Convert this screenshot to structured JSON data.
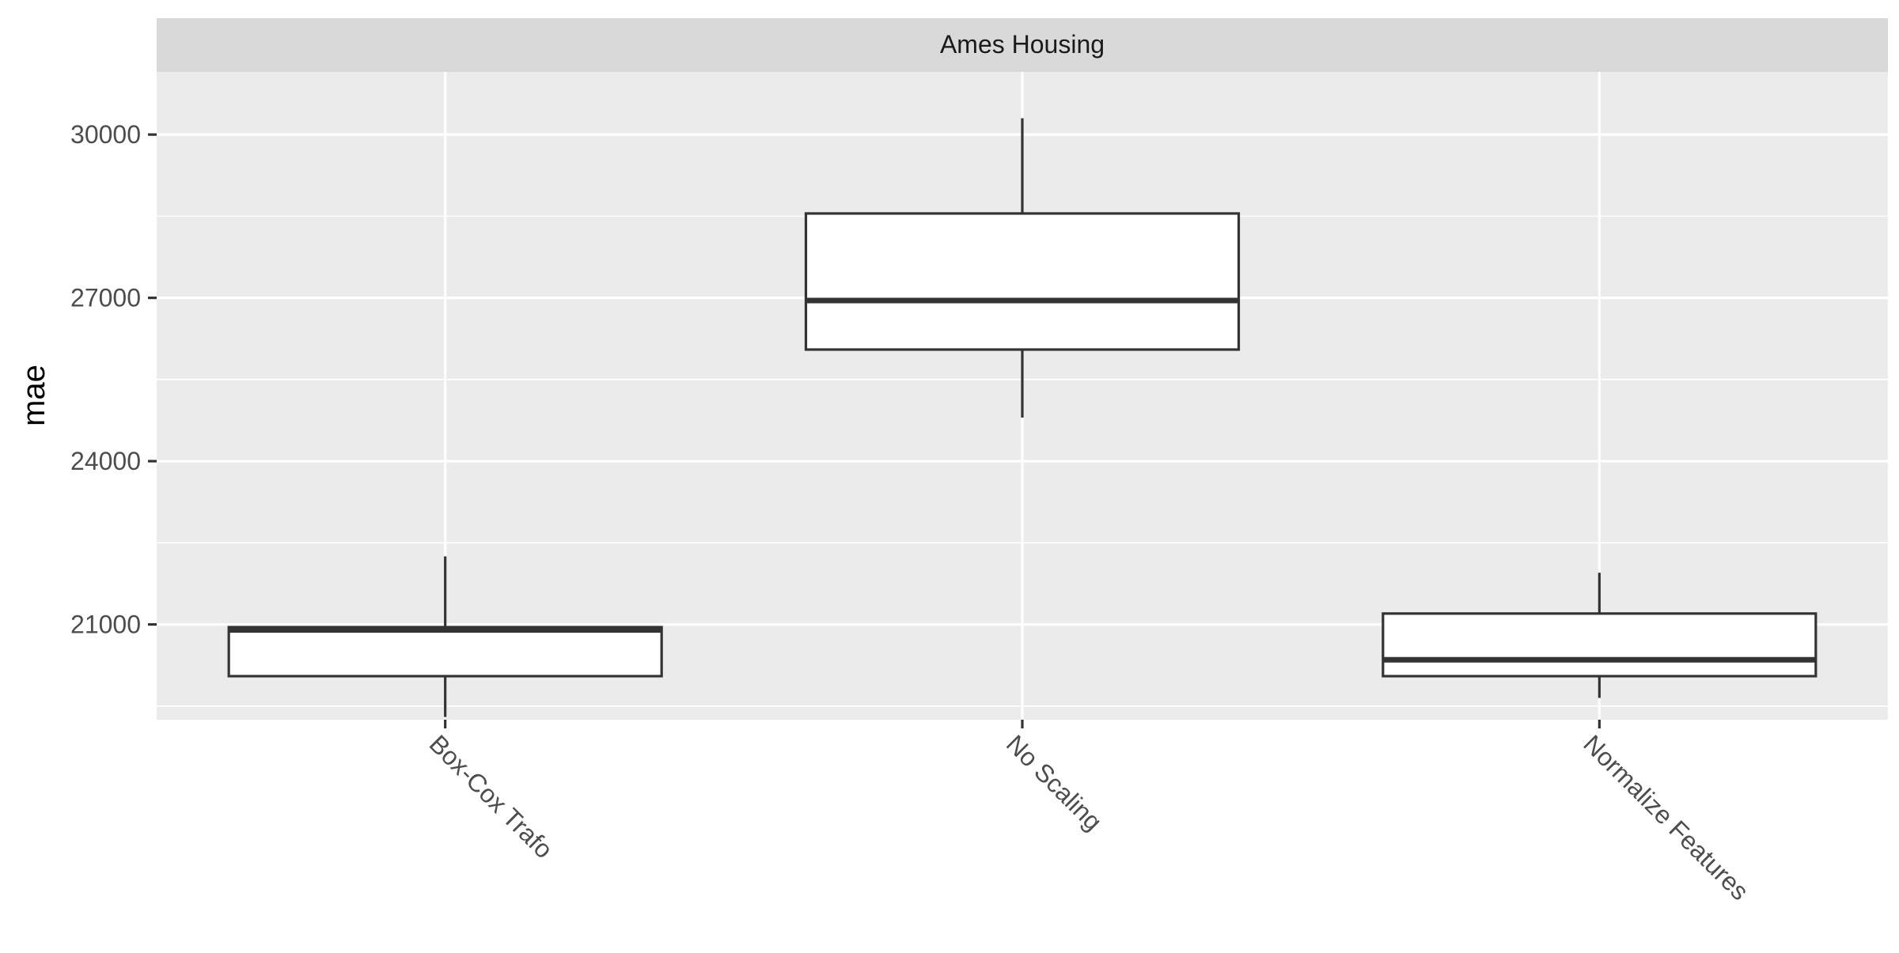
{
  "chart_data": {
    "type": "boxplot",
    "facet_title": "Ames Housing",
    "title": "",
    "xlabel": "",
    "ylabel": "mae",
    "ylim": [
      19250,
      31150
    ],
    "yticks": [
      21000,
      24000,
      27000,
      30000
    ],
    "y_minor_ticks": [
      19500,
      22500,
      25500,
      28500
    ],
    "grid": true,
    "x_tick_rotation_deg": 45,
    "categories": [
      "Box-Cox Trafo",
      "No Scaling",
      "Normalize Features"
    ],
    "boxes": [
      {
        "category": "Box-Cox Trafo",
        "whisker_low": 19300,
        "q1": 20050,
        "median": 20900,
        "q3": 20950,
        "whisker_high": 22250
      },
      {
        "category": "No Scaling",
        "whisker_low": 24800,
        "q1": 26050,
        "median": 26950,
        "q3": 28550,
        "whisker_high": 30300
      },
      {
        "category": "Normalize Features",
        "whisker_low": 19650,
        "q1": 20050,
        "median": 20350,
        "q3": 21200,
        "whisker_high": 21950
      }
    ],
    "colors": {
      "panel_bg": "#ebebeb",
      "strip_bg": "#d9d9d9",
      "grid": "#ffffff",
      "box_fill": "#ffffff",
      "box_stroke": "#333333",
      "tick_text": "#4d4d4d",
      "axis_title": "#000000"
    }
  }
}
